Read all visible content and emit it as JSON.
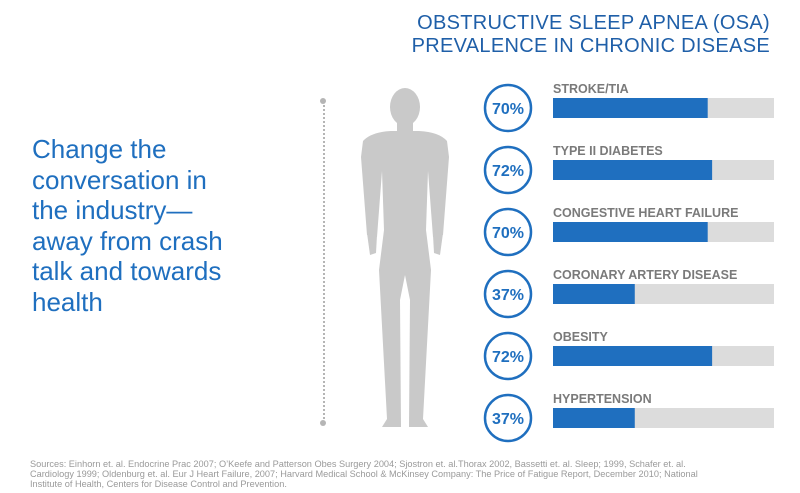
{
  "title": {
    "line1": "OBSTRUCTIVE SLEEP APNEA (OSA)",
    "line2": "PREVALENCE IN CHRONIC DISEASE"
  },
  "headline": {
    "lines": [
      "Change the",
      "conversation in",
      "the industry—",
      "away from crash",
      "talk and towards",
      "health"
    ]
  },
  "footnote": {
    "line1": "Sources: Einhorn et. al. Endocrine Prac 2007; O’Keefe and Patterson Obes Surgery 2004; Sjostron et. al.Thorax 2002, Bassetti et. al. Sleep; 1999, Schafer et. al.",
    "line2": "Cardiology 1999; Oldenburg et. al. Eur J Heart Failure, 2007; Harvard Medical School & McKinsey Company: The Price of Fatigue Report, December 2010;  National",
    "line3": "Institute of Health, Centers for Disease Control and Prevention."
  },
  "colors": {
    "accent": "#1f6fbf",
    "bar_track": "#dcdcdc",
    "label": "#7a7a7a",
    "silhouette": "#c9c9c9"
  },
  "icons": {
    "figure": "human-silhouette-icon"
  },
  "chart_data": {
    "type": "bar",
    "orientation": "horizontal",
    "title": "OBSTRUCTIVE SLEEP APNEA (OSA) PREVALENCE IN CHRONIC DISEASE",
    "categories": [
      "STROKE/TIA",
      "TYPE II DIABETES",
      "CONGESTIVE HEART FAILURE",
      "CORONARY ARTERY DISEASE",
      "OBESITY",
      "HYPERTENSION"
    ],
    "values": [
      70,
      72,
      70,
      37,
      72,
      37
    ],
    "value_labels": [
      "70%",
      "72%",
      "70%",
      "37%",
      "72%",
      "37%"
    ],
    "xlim": [
      0,
      100
    ]
  }
}
